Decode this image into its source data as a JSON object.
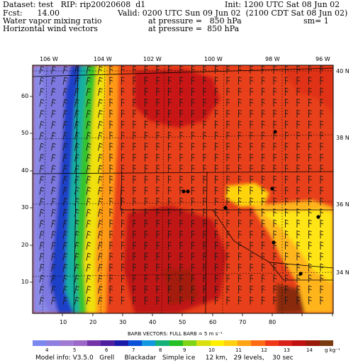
{
  "header": {
    "dataset": "Dataset: test   RIP: rip20020608  d1",
    "init": "Init: 1200 UTC Sat 08 Jun 02",
    "fcst": "Fcst:      14.00",
    "valid": "Valid: 0200 UTC Sun 09 Jun 02  (2100 CDT Sat 08 Jun 02)",
    "field1": "Water vapor mixing ratio",
    "pressure1": "at pressure =   850 hPa",
    "sm": "sm= 1",
    "field2": "Horizontal wind vectors",
    "pressure2": "at pressure =  850 hPa"
  },
  "map": {
    "longitudes": [
      "106 W",
      "104 W",
      "102 W",
      "100 W",
      "98 W",
      "96 W"
    ],
    "latitudes": [
      "40 N",
      "38 N",
      "36 N",
      "34 N"
    ],
    "x_ticks": [
      "10",
      "20",
      "30",
      "40",
      "50",
      "60",
      "70",
      "80"
    ],
    "y_ticks": [
      "60",
      "50",
      "40",
      "30",
      "20",
      "10"
    ]
  },
  "colorbar": {
    "barb_caption": "BARB VECTORS:  FULL BARB = 5 m s⁻¹",
    "labels": [
      "4",
      "5",
      "6",
      "7",
      "8",
      "9",
      "10",
      "11",
      "12",
      "13",
      "14"
    ],
    "units": "g kg⁻¹",
    "colors": [
      "#7b88f0",
      "#8f7fe0",
      "#a07ad2",
      "#9b68c8",
      "#7433a8",
      "#4d1fa0",
      "#1a1aa8",
      "#0a50d8",
      "#1098e0",
      "#16b07a",
      "#24c024",
      "#80d418",
      "#d8e010",
      "#fff000",
      "#ffd010",
      "#ffa214",
      "#ff6a14",
      "#f03818",
      "#d82018",
      "#c01010",
      "#9a1a0a",
      "#7a3a10"
    ]
  },
  "footer": "Model info: V3.5.0   Grell     Blackadar   Simple ice     12 km,   29 levels,    30 sec"
}
